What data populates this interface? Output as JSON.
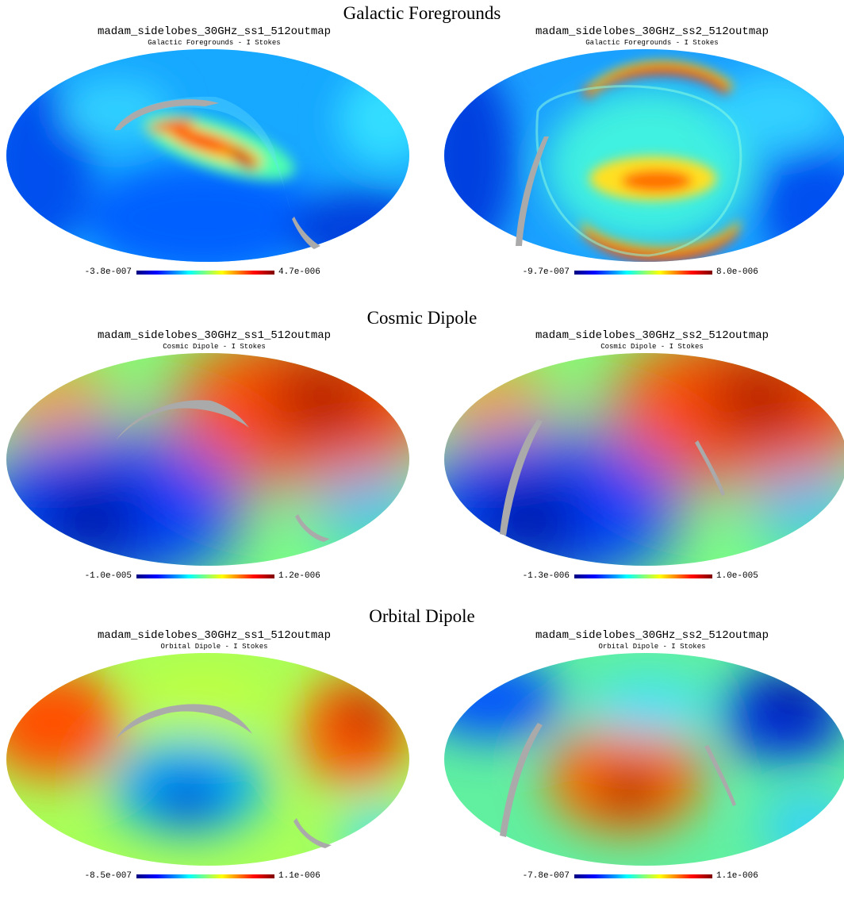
{
  "sections": [
    {
      "title": "Galactic Foregrounds",
      "panels": [
        {
          "title": "madam_sidelobes_30GHz_ss1_512outmap",
          "subtitle": "Galactic Foregrounds - I Stokes",
          "min": "-3.8e-007",
          "max": "4.7e-006"
        },
        {
          "title": "madam_sidelobes_30GHz_ss2_512outmap",
          "subtitle": "Galactic Foregrounds - I Stokes",
          "min": "-9.7e-007",
          "max": "8.0e-006"
        }
      ]
    },
    {
      "title": "Cosmic Dipole",
      "panels": [
        {
          "title": "madam_sidelobes_30GHz_ss1_512outmap",
          "subtitle": "Cosmic Dipole - I Stokes",
          "min": "-1.0e-005",
          "max": "1.2e-006"
        },
        {
          "title": "madam_sidelobes_30GHz_ss2_512outmap",
          "subtitle": "Cosmic Dipole - I Stokes",
          "min": "-1.3e-006",
          "max": "1.0e-005"
        }
      ]
    },
    {
      "title": "Orbital Dipole",
      "panels": [
        {
          "title": "madam_sidelobes_30GHz_ss1_512outmap",
          "subtitle": "Orbital Dipole - I Stokes",
          "min": "-8.5e-007",
          "max": "1.1e-006"
        },
        {
          "title": "madam_sidelobes_30GHz_ss2_512outmap",
          "subtitle": "Orbital Dipole - I Stokes",
          "min": "-7.8e-007",
          "max": "1.1e-006"
        }
      ]
    }
  ],
  "colormap": [
    "#00007f",
    "#0000ff",
    "#00a0ff",
    "#00ffff",
    "#7fff7f",
    "#ffff00",
    "#ff8000",
    "#ff0000",
    "#7f0000"
  ],
  "mask_color": "#aaaaaa"
}
